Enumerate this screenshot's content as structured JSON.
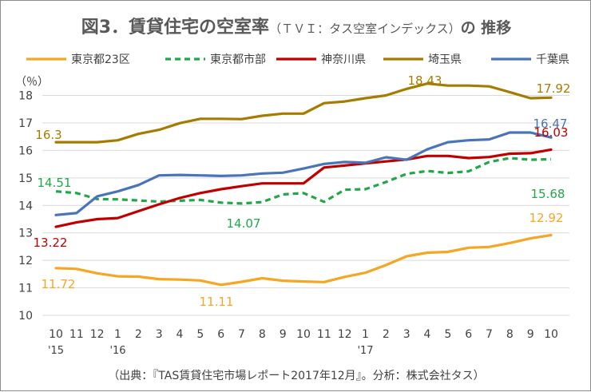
{
  "chart_data": {
    "type": "line",
    "title": "図3．賃貸住宅の空室率",
    "title_sub": "（ＴＶＩ：タス空室インデックス）",
    "title_tail": "の 推移",
    "ylabel": "（％）",
    "source": "（出典：『TAS賃貸住宅市場レポート2017年12月』。分析：株式会社タス）",
    "ylim": [
      10,
      18.8
    ],
    "y_ticks": [
      "10",
      "11",
      "12",
      "13",
      "14",
      "15",
      "16",
      "17",
      "18"
    ],
    "grid": true,
    "legend_position": "top",
    "categories": [
      "10",
      "11",
      "12",
      "1",
      "2",
      "3",
      "4",
      "5",
      "6",
      "7",
      "8",
      "9",
      "10",
      "11",
      "12",
      "1",
      "2",
      "3",
      "4",
      "5",
      "6",
      "7",
      "8",
      "9",
      "10"
    ],
    "year_labels": [
      {
        "index": 0,
        "text": "'15"
      },
      {
        "index": 3,
        "text": "'16"
      },
      {
        "index": 15,
        "text": "'17"
      }
    ],
    "series": [
      {
        "name": "東京都23区",
        "color": "#f5a623",
        "dash": "solid",
        "values": [
          11.72,
          11.69,
          11.53,
          11.42,
          11.41,
          11.32,
          11.3,
          11.27,
          11.11,
          11.22,
          11.35,
          11.26,
          11.23,
          11.21,
          11.4,
          11.55,
          11.83,
          12.15,
          12.28,
          12.31,
          12.46,
          12.49,
          12.63,
          12.8,
          12.92
        ]
      },
      {
        "name": "東京都市部",
        "color": "#22a64a",
        "dash": "dashed",
        "values": [
          14.51,
          14.45,
          14.23,
          14.22,
          14.18,
          14.14,
          14.17,
          14.2,
          14.1,
          14.07,
          14.12,
          14.4,
          14.45,
          14.13,
          14.57,
          14.59,
          14.85,
          15.15,
          15.25,
          15.18,
          15.24,
          15.58,
          15.72,
          15.66,
          15.68
        ]
      },
      {
        "name": "神奈川県",
        "color": "#c00000",
        "dash": "solid",
        "values": [
          13.22,
          13.38,
          13.5,
          13.54,
          13.79,
          14.04,
          14.27,
          14.45,
          14.59,
          14.7,
          14.8,
          14.8,
          14.8,
          15.38,
          15.45,
          15.53,
          15.6,
          15.67,
          15.8,
          15.8,
          15.72,
          15.76,
          15.88,
          15.9,
          16.03
        ]
      },
      {
        "name": "埼玉県",
        "color": "#a67c00",
        "dash": "solid",
        "values": [
          16.3,
          16.3,
          16.3,
          16.37,
          16.6,
          16.75,
          16.99,
          17.15,
          17.15,
          17.14,
          17.26,
          17.34,
          17.34,
          17.72,
          17.78,
          17.9,
          18.0,
          18.24,
          18.43,
          18.36,
          18.36,
          18.33,
          18.12,
          17.9,
          17.92
        ]
      },
      {
        "name": "千葉県",
        "color": "#4a74b8",
        "dash": "solid",
        "values": [
          13.65,
          13.72,
          14.33,
          14.51,
          14.74,
          15.09,
          15.11,
          15.09,
          15.07,
          15.09,
          15.16,
          15.19,
          15.34,
          15.51,
          15.58,
          15.55,
          15.75,
          15.66,
          16.04,
          16.3,
          16.37,
          16.4,
          16.65,
          16.65,
          16.47
        ]
      }
    ],
    "annotations": [
      {
        "text": "16.3",
        "series": "埼玉県",
        "color": "#a67c00"
      },
      {
        "text": "18.43",
        "series": "埼玉県",
        "color": "#a67c00"
      },
      {
        "text": "17.92",
        "series": "埼玉県",
        "color": "#a67c00"
      },
      {
        "text": "16.47",
        "series": "千葉県",
        "color": "#4a74b8"
      },
      {
        "text": "16.03",
        "series": "神奈川県",
        "color": "#c00000"
      },
      {
        "text": "15.68",
        "series": "東京都市部",
        "color": "#22a64a"
      },
      {
        "text": "14.51",
        "series": "東京都市部",
        "color": "#22a64a"
      },
      {
        "text": "14.07",
        "series": "東京都市部",
        "color": "#22a64a"
      },
      {
        "text": "13.22",
        "series": "神奈川県",
        "color": "#c00000"
      },
      {
        "text": "12.92",
        "series": "東京都23区",
        "color": "#f5a623"
      },
      {
        "text": "11.72",
        "series": "東京都23区",
        "color": "#f5a623"
      },
      {
        "text": "11.11",
        "series": "東京都23区",
        "color": "#f5a623"
      }
    ]
  }
}
